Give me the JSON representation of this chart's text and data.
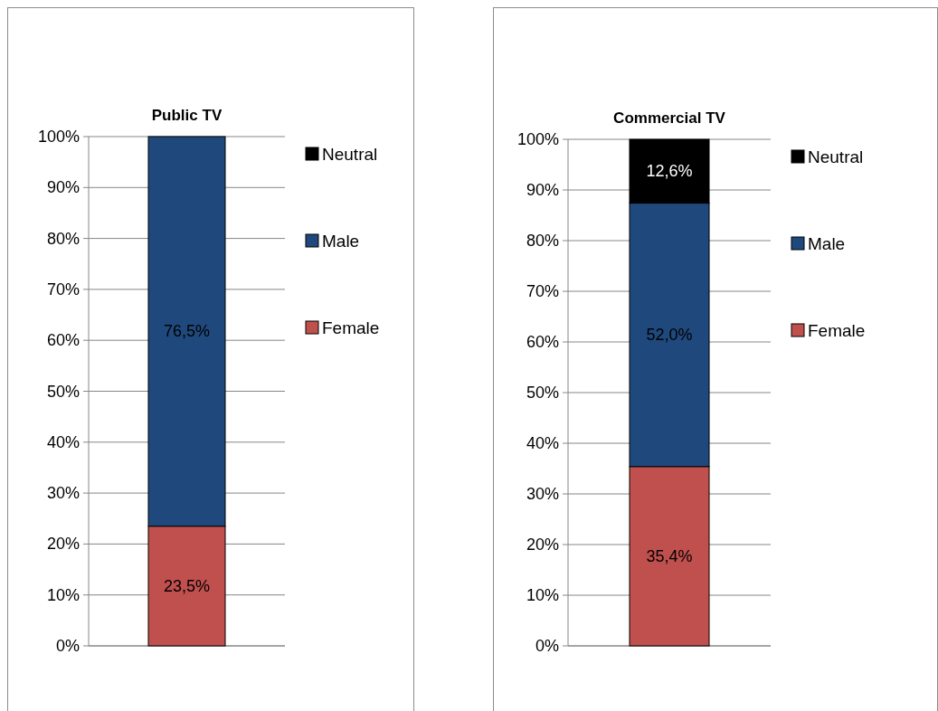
{
  "chart_data": [
    {
      "type": "bar",
      "title": "Public TV",
      "categories": [
        null
      ],
      "stacked": true,
      "grid": "y",
      "legend": "right",
      "ylim": [
        0,
        100
      ],
      "yticks": [
        {
          "value": 0,
          "label": "0%"
        },
        {
          "value": 10,
          "label": "10%"
        },
        {
          "value": 20,
          "label": "20%"
        },
        {
          "value": 30,
          "label": "30%"
        },
        {
          "value": 40,
          "label": "40%"
        },
        {
          "value": 50,
          "label": "50%"
        },
        {
          "value": 60,
          "label": "60%"
        },
        {
          "value": 70,
          "label": "70%"
        },
        {
          "value": 80,
          "label": "80%"
        },
        {
          "value": 90,
          "label": "90%"
        },
        {
          "value": 100,
          "label": "100%"
        }
      ],
      "series": [
        {
          "name": "Female",
          "color": "#c0504d",
          "values": [
            23.5
          ],
          "value_labels": [
            "23,5%"
          ]
        },
        {
          "name": "Male",
          "color": "#1f497d",
          "values": [
            76.5
          ],
          "value_labels": [
            "76,5%"
          ]
        },
        {
          "name": "Neutral",
          "color": "#000000",
          "values": [
            0
          ],
          "value_labels": [
            null
          ]
        }
      ]
    },
    {
      "type": "bar",
      "title": "Commercial TV",
      "categories": [
        null
      ],
      "stacked": true,
      "grid": "y",
      "legend": "right",
      "ylim": [
        0,
        100
      ],
      "yticks": [
        {
          "value": 0,
          "label": "0%"
        },
        {
          "value": 10,
          "label": "10%"
        },
        {
          "value": 20,
          "label": "20%"
        },
        {
          "value": 30,
          "label": "30%"
        },
        {
          "value": 40,
          "label": "40%"
        },
        {
          "value": 50,
          "label": "50%"
        },
        {
          "value": 60,
          "label": "60%"
        },
        {
          "value": 70,
          "label": "70%"
        },
        {
          "value": 80,
          "label": "80%"
        },
        {
          "value": 90,
          "label": "90%"
        },
        {
          "value": 100,
          "label": "100%"
        }
      ],
      "series": [
        {
          "name": "Female",
          "color": "#c0504d",
          "values": [
            35.4
          ],
          "value_labels": [
            "35,4%"
          ]
        },
        {
          "name": "Male",
          "color": "#1f497d",
          "values": [
            52.0
          ],
          "value_labels": [
            "52,0%"
          ]
        },
        {
          "name": "Neutral",
          "color": "#000000",
          "values": [
            12.6
          ],
          "value_labels": [
            "12,6%"
          ]
        }
      ]
    }
  ]
}
